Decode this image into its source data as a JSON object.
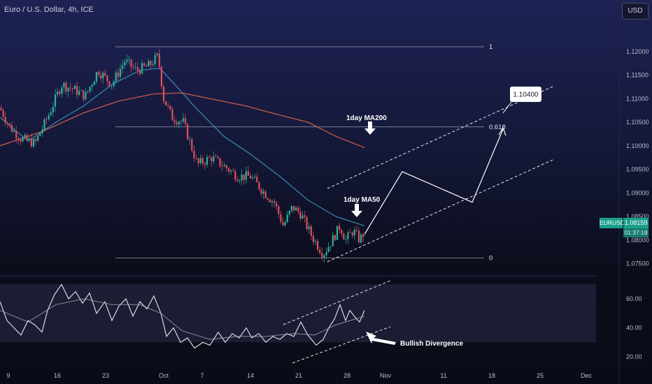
{
  "header": {
    "symbol_title": "Euro / U.S. Dollar, 4h, ICE",
    "currency_button": "USD"
  },
  "price_badge": {
    "symbol": "EURUSD",
    "price": "1.08159",
    "countdown": "01:37:18"
  },
  "chart_data": [
    {
      "type": "candlestick",
      "title": "",
      "yaxis_ticks": [
        "1.12000",
        "1.11500",
        "1.11000",
        "1.10500",
        "1.10000",
        "1.09500",
        "1.09000",
        "1.08500",
        "1.08000",
        "1.07500"
      ],
      "ylim": [
        1.073,
        1.123
      ],
      "xaxis_ticks": [
        "9",
        "16",
        "23",
        "Oct",
        "7",
        "14",
        "21",
        "28",
        "Nov",
        "11",
        "18",
        "25",
        "Dec"
      ],
      "close_path": [
        [
          0,
          1.108
        ],
        [
          14,
          1.104
        ],
        [
          30,
          1.1015
        ],
        [
          50,
          1.1005
        ],
        [
          68,
          1.106
        ],
        [
          88,
          1.113
        ],
        [
          105,
          1.112
        ],
        [
          122,
          1.1105
        ],
        [
          140,
          1.116
        ],
        [
          160,
          1.113
        ],
        [
          178,
          1.118
        ],
        [
          195,
          1.116
        ],
        [
          213,
          1.117
        ],
        [
          226,
          1.119
        ],
        [
          234,
          1.11
        ],
        [
          246,
          1.106
        ],
        [
          262,
          1.105
        ],
        [
          282,
          1.096
        ],
        [
          302,
          1.0975
        ],
        [
          322,
          1.0955
        ],
        [
          340,
          1.0935
        ],
        [
          358,
          1.0935
        ],
        [
          378,
          1.09
        ],
        [
          392,
          1.088
        ],
        [
          405,
          1.083
        ],
        [
          418,
          1.087
        ],
        [
          430,
          1.0855
        ],
        [
          445,
          1.081
        ],
        [
          462,
          1.077
        ],
        [
          475,
          1.08
        ],
        [
          486,
          1.083
        ],
        [
          494,
          1.08
        ],
        [
          505,
          1.082
        ],
        [
          514,
          1.08
        ],
        [
          521,
          1.0816
        ]
      ],
      "series": [
        {
          "name": "",
          "type": "ma",
          "points": [
            [
              0,
              1.106
            ],
            [
              40,
              1.101
            ],
            [
              80,
              1.105
            ],
            [
              120,
              1.1085
            ],
            [
              160,
              1.113
            ],
            [
              200,
              1.116
            ],
            [
              228,
              1.1165
            ],
            [
              250,
              1.113
            ],
            [
              280,
              1.108
            ],
            [
              320,
              1.102
            ],
            [
              360,
              1.098
            ],
            [
              400,
              1.0935
            ],
            [
              440,
              1.0885
            ],
            [
              480,
              1.085
            ],
            [
              521,
              1.083
            ]
          ]
        },
        {
          "name": "",
          "type": "ma",
          "points": [
            [
              0,
              1.1
            ],
            [
              60,
              1.103
            ],
            [
              120,
              1.107
            ],
            [
              170,
              1.1095
            ],
            [
              220,
              1.111
            ],
            [
              260,
              1.1112
            ],
            [
              300,
              1.11
            ],
            [
              350,
              1.1085
            ],
            [
              400,
              1.1065
            ],
            [
              440,
              1.105
            ],
            [
              480,
              1.102
            ],
            [
              521,
              1.0996
            ]
          ]
        }
      ],
      "fibonacci": [
        {
          "label": "1",
          "price": 1.121
        },
        {
          "label": "0.618",
          "price": 1.104
        },
        {
          "label": "0",
          "price": 1.0762
        }
      ],
      "annotations": [
        {
          "text": "1day MA200"
        },
        {
          "text": "1day MA50"
        },
        {
          "text": "1.10400"
        }
      ],
      "projection": [
        [
          521,
          1.0812
        ],
        [
          575,
          1.0945
        ],
        [
          675,
          1.088
        ],
        [
          719,
          1.1035
        ]
      ]
    },
    {
      "type": "line",
      "title": "",
      "yaxis_ticks": [
        "60.00",
        "40.00",
        "20.00"
      ],
      "ylim": [
        15,
        75
      ],
      "band": [
        30,
        70
      ],
      "series": [
        {
          "name": "",
          "points": [
            [
              0,
              58
            ],
            [
              10,
              45
            ],
            [
              20,
              40
            ],
            [
              30,
              35
            ],
            [
              40,
              45
            ],
            [
              50,
              42
            ],
            [
              60,
              37
            ],
            [
              68,
              52
            ],
            [
              78,
              63
            ],
            [
              88,
              70
            ],
            [
              98,
              60
            ],
            [
              108,
              65
            ],
            [
              118,
              57
            ],
            [
              128,
              64
            ],
            [
              138,
              50
            ],
            [
              150,
              58
            ],
            [
              160,
              45
            ],
            [
              170,
              55
            ],
            [
              180,
              60
            ],
            [
              190,
              48
            ],
            [
              200,
              58
            ],
            [
              210,
              53
            ],
            [
              220,
              62
            ],
            [
              230,
              50
            ],
            [
              238,
              34
            ],
            [
              248,
              40
            ],
            [
              258,
              30
            ],
            [
              268,
              33
            ],
            [
              278,
              26
            ],
            [
              290,
              30
            ],
            [
              300,
              28
            ],
            [
              312,
              37
            ],
            [
              322,
              30
            ],
            [
              332,
              36
            ],
            [
              342,
              33
            ],
            [
              352,
              40
            ],
            [
              360,
              33
            ],
            [
              370,
              36
            ],
            [
              380,
              30
            ],
            [
              390,
              34
            ],
            [
              400,
              32
            ],
            [
              410,
              36
            ],
            [
              420,
              34
            ],
            [
              430,
              44
            ],
            [
              440,
              35
            ],
            [
              452,
              28
            ],
            [
              462,
              32
            ],
            [
              470,
              40
            ],
            [
              478,
              46
            ],
            [
              486,
              56
            ],
            [
              494,
              45
            ],
            [
              500,
              52
            ],
            [
              508,
              47
            ],
            [
              514,
              44
            ],
            [
              521,
              52
            ]
          ]
        },
        {
          "name": "",
          "points": [
            [
              0,
              52
            ],
            [
              40,
              44
            ],
            [
              80,
              56
            ],
            [
              120,
              60
            ],
            [
              160,
              56
            ],
            [
              200,
              56
            ],
            [
              230,
              50
            ],
            [
              260,
              38
            ],
            [
              300,
              32
            ],
            [
              340,
              34
            ],
            [
              380,
              34
            ],
            [
              420,
              36
            ],
            [
              450,
              35
            ],
            [
              480,
              42
            ],
            [
              521,
              48
            ]
          ]
        }
      ],
      "annotations": [
        {
          "text": "Bullish Divergence"
        }
      ]
    }
  ]
}
